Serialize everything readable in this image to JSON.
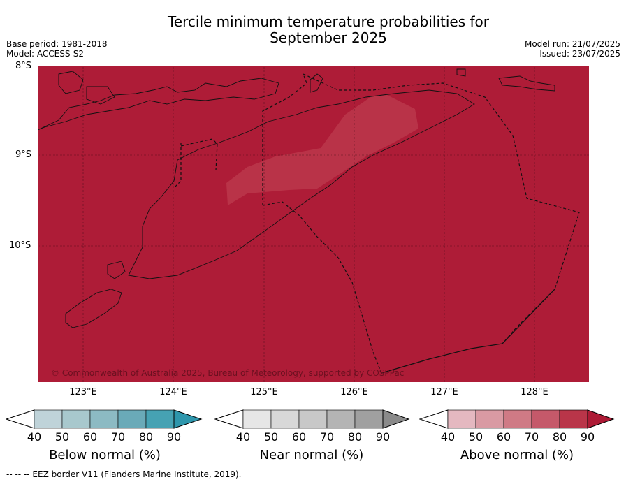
{
  "title_line1": "Tercile minimum temperature probabilities for",
  "title_line2": "September 2025",
  "base_period": "Base period: 1981-2018",
  "model": "Model: ACCESS-S2",
  "model_run": "Model run: 21/07/2025",
  "issued": "Issued: 23/07/2025",
  "lat_labels": [
    "8°S",
    "9°S",
    "10°S"
  ],
  "lon_labels": [
    "123°E",
    "124°E",
    "125°E",
    "126°E",
    "127°E",
    "128°E"
  ],
  "copyright": "© Commonwealth of Australia 2025, Bureau of Meteorology, supported by COSPPac",
  "legends": [
    {
      "label": "Below normal (%)",
      "ticks": [
        "40",
        "50",
        "60",
        "70",
        "80",
        "90"
      ],
      "colors": [
        "#ffffff",
        "#bfd3d9",
        "#a8c8cd",
        "#8cbac3",
        "#6aaab8",
        "#46a2b3",
        "#2e96ac"
      ]
    },
    {
      "label": "Near normal (%)",
      "ticks": [
        "40",
        "50",
        "60",
        "70",
        "80",
        "90"
      ],
      "colors": [
        "#ffffff",
        "#e6e6e6",
        "#d8d8d8",
        "#c8c8c8",
        "#b4b4b4",
        "#a0a0a0",
        "#8a8a8a"
      ]
    },
    {
      "label": "Above normal (%)",
      "ticks": [
        "40",
        "50",
        "60",
        "70",
        "80",
        "90"
      ],
      "colors": [
        "#ffffff",
        "#e4b8c0",
        "#d99aa3",
        "#cf7a85",
        "#c5596a",
        "#b93549",
        "#ad1a35"
      ]
    }
  ],
  "footnote": "--  --  -- EEZ border V11 (Flanders Marine Institute, 2019).",
  "map_colors": {
    "dominant": "#ae1c37",
    "lighter": "#b93549"
  }
}
